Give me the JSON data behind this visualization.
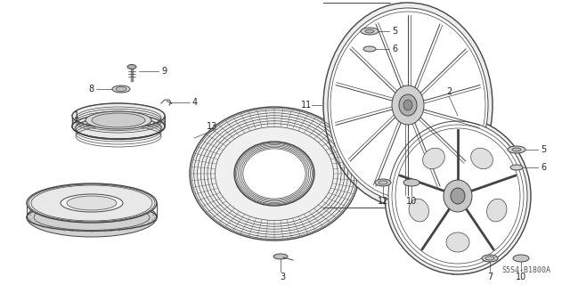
{
  "diagram_code": "S5S4-B1800A",
  "background_color": "#ffffff",
  "line_color": "#444444",
  "figsize": [
    6.4,
    3.2
  ],
  "dpi": 100
}
